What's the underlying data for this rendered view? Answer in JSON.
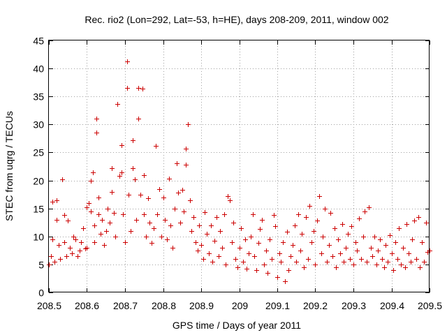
{
  "chart_data": {
    "type": "scatter",
    "title": "Rec. rio2 (Lon=292, Lat=-53, h=HE), days 208-209, 2011, window 002",
    "xlabel": "GPS time / Days of year 2011",
    "ylabel": "STEC from uqrg / TECUs",
    "xlim": [
      208.5,
      209.5
    ],
    "ylim": [
      0,
      45
    ],
    "xticks": [
      208.5,
      208.6,
      208.7,
      208.8,
      208.9,
      209,
      209.1,
      209.2,
      209.3,
      209.4,
      209.5
    ],
    "xtick_labels": [
      "208.5",
      "208.6",
      "208.7",
      "208.8",
      "208.9",
      "209",
      "209.1",
      "209.2",
      "209.3",
      "209.4",
      "209.5"
    ],
    "yticks": [
      0,
      5,
      10,
      15,
      20,
      25,
      30,
      35,
      40,
      45
    ],
    "ytick_labels": [
      "0",
      "5",
      "10",
      "15",
      "20",
      "25",
      "30",
      "35",
      "40",
      "45"
    ],
    "grid": true,
    "marker": "+",
    "color": "#cc0000",
    "series": [
      {
        "name": "STEC",
        "points": [
          [
            208.5,
            5
          ],
          [
            208.505,
            6.5
          ],
          [
            208.51,
            9.5
          ],
          [
            208.51,
            16.2
          ],
          [
            208.515,
            5.5
          ],
          [
            208.52,
            13
          ],
          [
            208.52,
            16.5
          ],
          [
            208.525,
            8.5
          ],
          [
            208.53,
            6
          ],
          [
            208.535,
            20.2
          ],
          [
            208.54,
            13.8
          ],
          [
            208.54,
            9
          ],
          [
            208.545,
            6.5
          ],
          [
            208.55,
            12.8
          ],
          [
            208.555,
            8
          ],
          [
            208.56,
            7
          ],
          [
            208.565,
            10
          ],
          [
            208.57,
            9.5
          ],
          [
            208.575,
            6.5
          ],
          [
            208.58,
            7.5
          ],
          [
            208.585,
            9
          ],
          [
            208.59,
            11.5
          ],
          [
            208.595,
            7.8
          ],
          [
            208.6,
            8
          ],
          [
            208.6,
            15.2
          ],
          [
            208.605,
            16
          ],
          [
            208.61,
            14.5
          ],
          [
            208.61,
            20
          ],
          [
            208.615,
            21.5
          ],
          [
            208.62,
            12
          ],
          [
            208.62,
            9
          ],
          [
            208.625,
            28.5
          ],
          [
            208.625,
            31
          ],
          [
            208.63,
            17
          ],
          [
            208.63,
            14
          ],
          [
            208.635,
            10.5
          ],
          [
            208.64,
            13
          ],
          [
            208.645,
            8.5
          ],
          [
            208.65,
            11
          ],
          [
            208.655,
            15
          ],
          [
            208.66,
            12.5
          ],
          [
            208.665,
            18
          ],
          [
            208.665,
            22.2
          ],
          [
            208.67,
            14.2
          ],
          [
            208.675,
            10
          ],
          [
            208.68,
            33.6
          ],
          [
            208.685,
            20.8
          ],
          [
            208.69,
            26.3
          ],
          [
            208.69,
            21.5
          ],
          [
            208.695,
            14
          ],
          [
            208.7,
            9
          ],
          [
            208.705,
            41.2
          ],
          [
            208.705,
            36.5
          ],
          [
            208.71,
            17.5
          ],
          [
            208.715,
            11
          ],
          [
            208.72,
            27.2
          ],
          [
            208.72,
            22.2
          ],
          [
            208.725,
            20.2
          ],
          [
            208.73,
            13
          ],
          [
            208.735,
            36.5
          ],
          [
            208.735,
            31
          ],
          [
            208.74,
            17.5
          ],
          [
            208.745,
            36.4
          ],
          [
            208.75,
            21
          ],
          [
            208.75,
            14
          ],
          [
            208.755,
            10
          ],
          [
            208.76,
            16.8
          ],
          [
            208.765,
            12.5
          ],
          [
            208.77,
            8.8
          ],
          [
            208.775,
            11.5
          ],
          [
            208.78,
            26.2
          ],
          [
            208.785,
            14
          ],
          [
            208.79,
            18.5
          ],
          [
            208.795,
            10
          ],
          [
            208.8,
            17
          ],
          [
            208.805,
            13
          ],
          [
            208.81,
            9.5
          ],
          [
            208.815,
            20.3
          ],
          [
            208.82,
            12
          ],
          [
            208.825,
            8
          ],
          [
            208.83,
            15
          ],
          [
            208.835,
            23
          ],
          [
            208.84,
            17.8
          ],
          [
            208.845,
            12.5
          ],
          [
            208.85,
            18.3
          ],
          [
            208.855,
            14.5
          ],
          [
            208.86,
            22.8
          ],
          [
            208.86,
            25.7
          ],
          [
            208.865,
            30
          ],
          [
            208.87,
            16.5
          ],
          [
            208.875,
            11
          ],
          [
            208.88,
            13.5
          ],
          [
            208.885,
            9
          ],
          [
            208.89,
            7.5
          ],
          [
            208.895,
            12
          ],
          [
            208.9,
            8.5
          ],
          [
            208.905,
            6
          ],
          [
            208.91,
            14.3
          ],
          [
            208.915,
            10.5
          ],
          [
            208.92,
            7
          ],
          [
            208.925,
            12
          ],
          [
            208.93,
            5.5
          ],
          [
            208.935,
            9.2
          ],
          [
            208.94,
            13.5
          ],
          [
            208.945,
            6.5
          ],
          [
            208.95,
            11
          ],
          [
            208.955,
            8
          ],
          [
            208.96,
            14
          ],
          [
            208.965,
            5
          ],
          [
            208.97,
            17.2
          ],
          [
            208.975,
            16.5
          ],
          [
            208.98,
            9
          ],
          [
            208.985,
            12.5
          ],
          [
            208.99,
            6
          ],
          [
            208.995,
            4.5
          ],
          [
            209,
            8
          ],
          [
            209.005,
            11.5
          ],
          [
            209.01,
            5.5
          ],
          [
            209.015,
            9.5
          ],
          [
            209.02,
            4.2
          ],
          [
            209.025,
            7
          ],
          [
            209.03,
            10
          ],
          [
            209.035,
            14
          ],
          [
            209.04,
            6.5
          ],
          [
            209.045,
            4
          ],
          [
            209.05,
            8.8
          ],
          [
            209.055,
            11.3
          ],
          [
            209.06,
            13
          ],
          [
            209.065,
            5
          ],
          [
            209.07,
            7.5
          ],
          [
            209.075,
            3.5
          ],
          [
            209.08,
            9.5
          ],
          [
            209.085,
            6
          ],
          [
            209.09,
            13.8
          ],
          [
            209.095,
            11.8
          ],
          [
            209.1,
            2.8
          ],
          [
            209.105,
            7
          ],
          [
            209.11,
            5.5
          ],
          [
            209.115,
            9
          ],
          [
            209.12,
            2
          ],
          [
            209.125,
            10.8
          ],
          [
            209.13,
            4
          ],
          [
            209.135,
            6.5
          ],
          [
            209.14,
            8.5
          ],
          [
            209.145,
            12
          ],
          [
            209.15,
            5.5
          ],
          [
            209.155,
            14
          ],
          [
            209.16,
            7.5
          ],
          [
            209.165,
            10.5
          ],
          [
            209.17,
            4.5
          ],
          [
            209.175,
            13.5
          ],
          [
            209.18,
            6
          ],
          [
            209.185,
            15.5
          ],
          [
            209.19,
            9
          ],
          [
            209.195,
            11
          ],
          [
            209.2,
            5
          ],
          [
            209.205,
            12.8
          ],
          [
            209.21,
            17.2
          ],
          [
            209.215,
            7
          ],
          [
            209.22,
            10
          ],
          [
            209.225,
            15
          ],
          [
            209.23,
            5.5
          ],
          [
            209.235,
            8.5
          ],
          [
            209.24,
            14.2
          ],
          [
            209.245,
            6.5
          ],
          [
            209.25,
            11.5
          ],
          [
            209.255,
            4.5
          ],
          [
            209.26,
            9.5
          ],
          [
            209.265,
            7
          ],
          [
            209.27,
            12.2
          ],
          [
            209.275,
            5.5
          ],
          [
            209.28,
            8
          ],
          [
            209.285,
            10.5
          ],
          [
            209.29,
            6
          ],
          [
            209.295,
            11.8
          ],
          [
            209.3,
            5
          ],
          [
            209.305,
            9
          ],
          [
            209.31,
            7.5
          ],
          [
            209.315,
            13.2
          ],
          [
            209.32,
            6
          ],
          [
            209.325,
            10
          ],
          [
            209.33,
            14.5
          ],
          [
            209.335,
            5.5
          ],
          [
            209.34,
            15.2
          ],
          [
            209.345,
            8
          ],
          [
            209.35,
            6.5
          ],
          [
            209.355,
            10
          ],
          [
            209.36,
            5
          ],
          [
            209.365,
            7.5
          ],
          [
            209.37,
            9.5
          ],
          [
            209.375,
            6
          ],
          [
            209.38,
            4.5
          ],
          [
            209.385,
            8.5
          ],
          [
            209.39,
            5.5
          ],
          [
            209.395,
            10.2
          ],
          [
            209.4,
            7
          ],
          [
            209.405,
            4
          ],
          [
            209.41,
            9
          ],
          [
            209.415,
            6
          ],
          [
            209.42,
            11.5
          ],
          [
            209.425,
            5
          ],
          [
            209.43,
            8
          ],
          [
            209.435,
            4.5
          ],
          [
            209.44,
            12.2
          ],
          [
            209.445,
            7
          ],
          [
            209.45,
            5.5
          ],
          [
            209.455,
            9.5
          ],
          [
            209.46,
            12.8
          ],
          [
            209.465,
            6
          ],
          [
            209.47,
            13.5
          ],
          [
            209.475,
            4.5
          ],
          [
            209.48,
            9
          ],
          [
            209.485,
            5.5
          ],
          [
            209.49,
            12.5
          ],
          [
            209.495,
            7.2
          ],
          [
            209.5,
            7.5
          ]
        ]
      }
    ]
  }
}
